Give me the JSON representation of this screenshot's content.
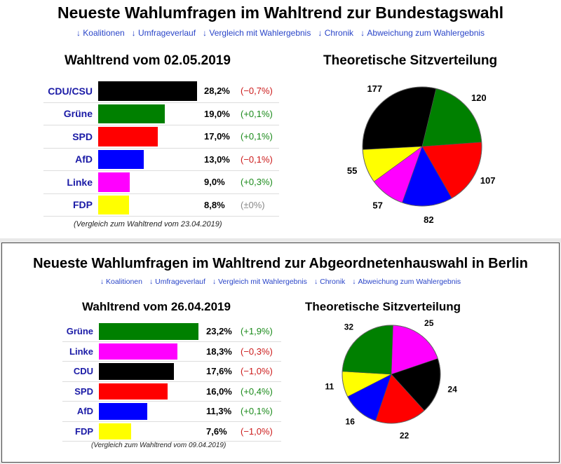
{
  "colors": {
    "CDU/CSU": "#000000",
    "CDU": "#000000",
    "Grüne": "#008000",
    "SPD": "#ff0000",
    "AfD": "#0000ff",
    "Linke": "#ff00ff",
    "FDP": "#ffff00",
    "link": "#2a45c8",
    "label": "#1a1aa6",
    "neg": "#cc1a1a",
    "pos": "#1a8a1a",
    "neutral": "#888888"
  },
  "icons": {
    "nav_arrow": "down-arrow-icon"
  },
  "panels": [
    {
      "title": "Neueste Wahlumfragen im Wahltrend zur Bundestagswahl",
      "nav": [
        "Koalitionen",
        "Umfrageverlauf",
        "Vergleich mit Wahlergebnis",
        "Chronik",
        "Abweichung zum Wahlergebnis"
      ],
      "trend_title": "Wahltrend vom 02.05.2019",
      "seat_title": "Theoretische Sitzverteilung",
      "footnote": "(Vergleich zum Wahltrend vom 23.04.2019)"
    },
    {
      "title": "Neueste Wahlumfragen im Wahltrend zur Abgeordnetenhauswahl in Berlin",
      "nav": [
        "Koalitionen",
        "Umfrageverlauf",
        "Vergleich mit Wahlergebnis",
        "Chronik",
        "Abweichung zum Wahlergebnis"
      ],
      "trend_title": "Wahltrend vom 26.04.2019",
      "seat_title": "Theoretische Sitzverteilung",
      "footnote": "(Vergleich zum Wahltrend vom 09.04.2019)"
    }
  ],
  "chart_data": [
    {
      "type": "bar",
      "title": "Wahltrend vom 02.05.2019",
      "categories": [
        "CDU/CSU",
        "Grüne",
        "SPD",
        "AfD",
        "Linke",
        "FDP"
      ],
      "values": [
        28.2,
        19.0,
        17.0,
        13.0,
        9.0,
        8.8
      ],
      "value_labels": [
        "28,2%",
        "19,0%",
        "17,0%",
        "13,0%",
        "9,0%",
        "8,8%"
      ],
      "changes": [
        -0.7,
        0.1,
        0.1,
        -0.1,
        0.3,
        0.0
      ],
      "change_labels": [
        "(−0,7%)",
        "(+0,1%)",
        "(+0,1%)",
        "(−0,1%)",
        "(+0,3%)",
        "(±0%)"
      ],
      "note": "(Vergleich zum Wahltrend vom 23.04.2019)"
    },
    {
      "type": "pie",
      "title": "Theoretische Sitzverteilung",
      "categories": [
        "CDU/CSU",
        "Grüne",
        "SPD",
        "AfD",
        "Linke",
        "FDP"
      ],
      "values": [
        177,
        120,
        107,
        82,
        57,
        55
      ],
      "value_labels": [
        "177",
        "120",
        "107",
        "82",
        "57",
        "55"
      ]
    },
    {
      "type": "bar",
      "title": "Wahltrend vom 26.04.2019",
      "categories": [
        "Grüne",
        "Linke",
        "CDU",
        "SPD",
        "AfD",
        "FDP"
      ],
      "values": [
        23.2,
        18.3,
        17.6,
        16.0,
        11.3,
        7.6
      ],
      "value_labels": [
        "23,2%",
        "18,3%",
        "17,6%",
        "16,0%",
        "11,3%",
        "7,6%"
      ],
      "changes": [
        1.9,
        -0.3,
        -1.0,
        0.4,
        0.1,
        -1.0
      ],
      "change_labels": [
        "(+1,9%)",
        "(−0,3%)",
        "(−1,0%)",
        "(+0,4%)",
        "(+0,1%)",
        "(−1,0%)"
      ],
      "note": "(Vergleich zum Wahltrend vom 09.04.2019)"
    },
    {
      "type": "pie",
      "title": "Theoretische Sitzverteilung",
      "categories": [
        "Linke",
        "CDU",
        "SPD",
        "AfD",
        "FDP",
        "Grüne"
      ],
      "values": [
        25,
        24,
        22,
        16,
        11,
        32
      ],
      "value_labels": [
        "25",
        "24",
        "22",
        "16",
        "11",
        "32"
      ]
    }
  ]
}
